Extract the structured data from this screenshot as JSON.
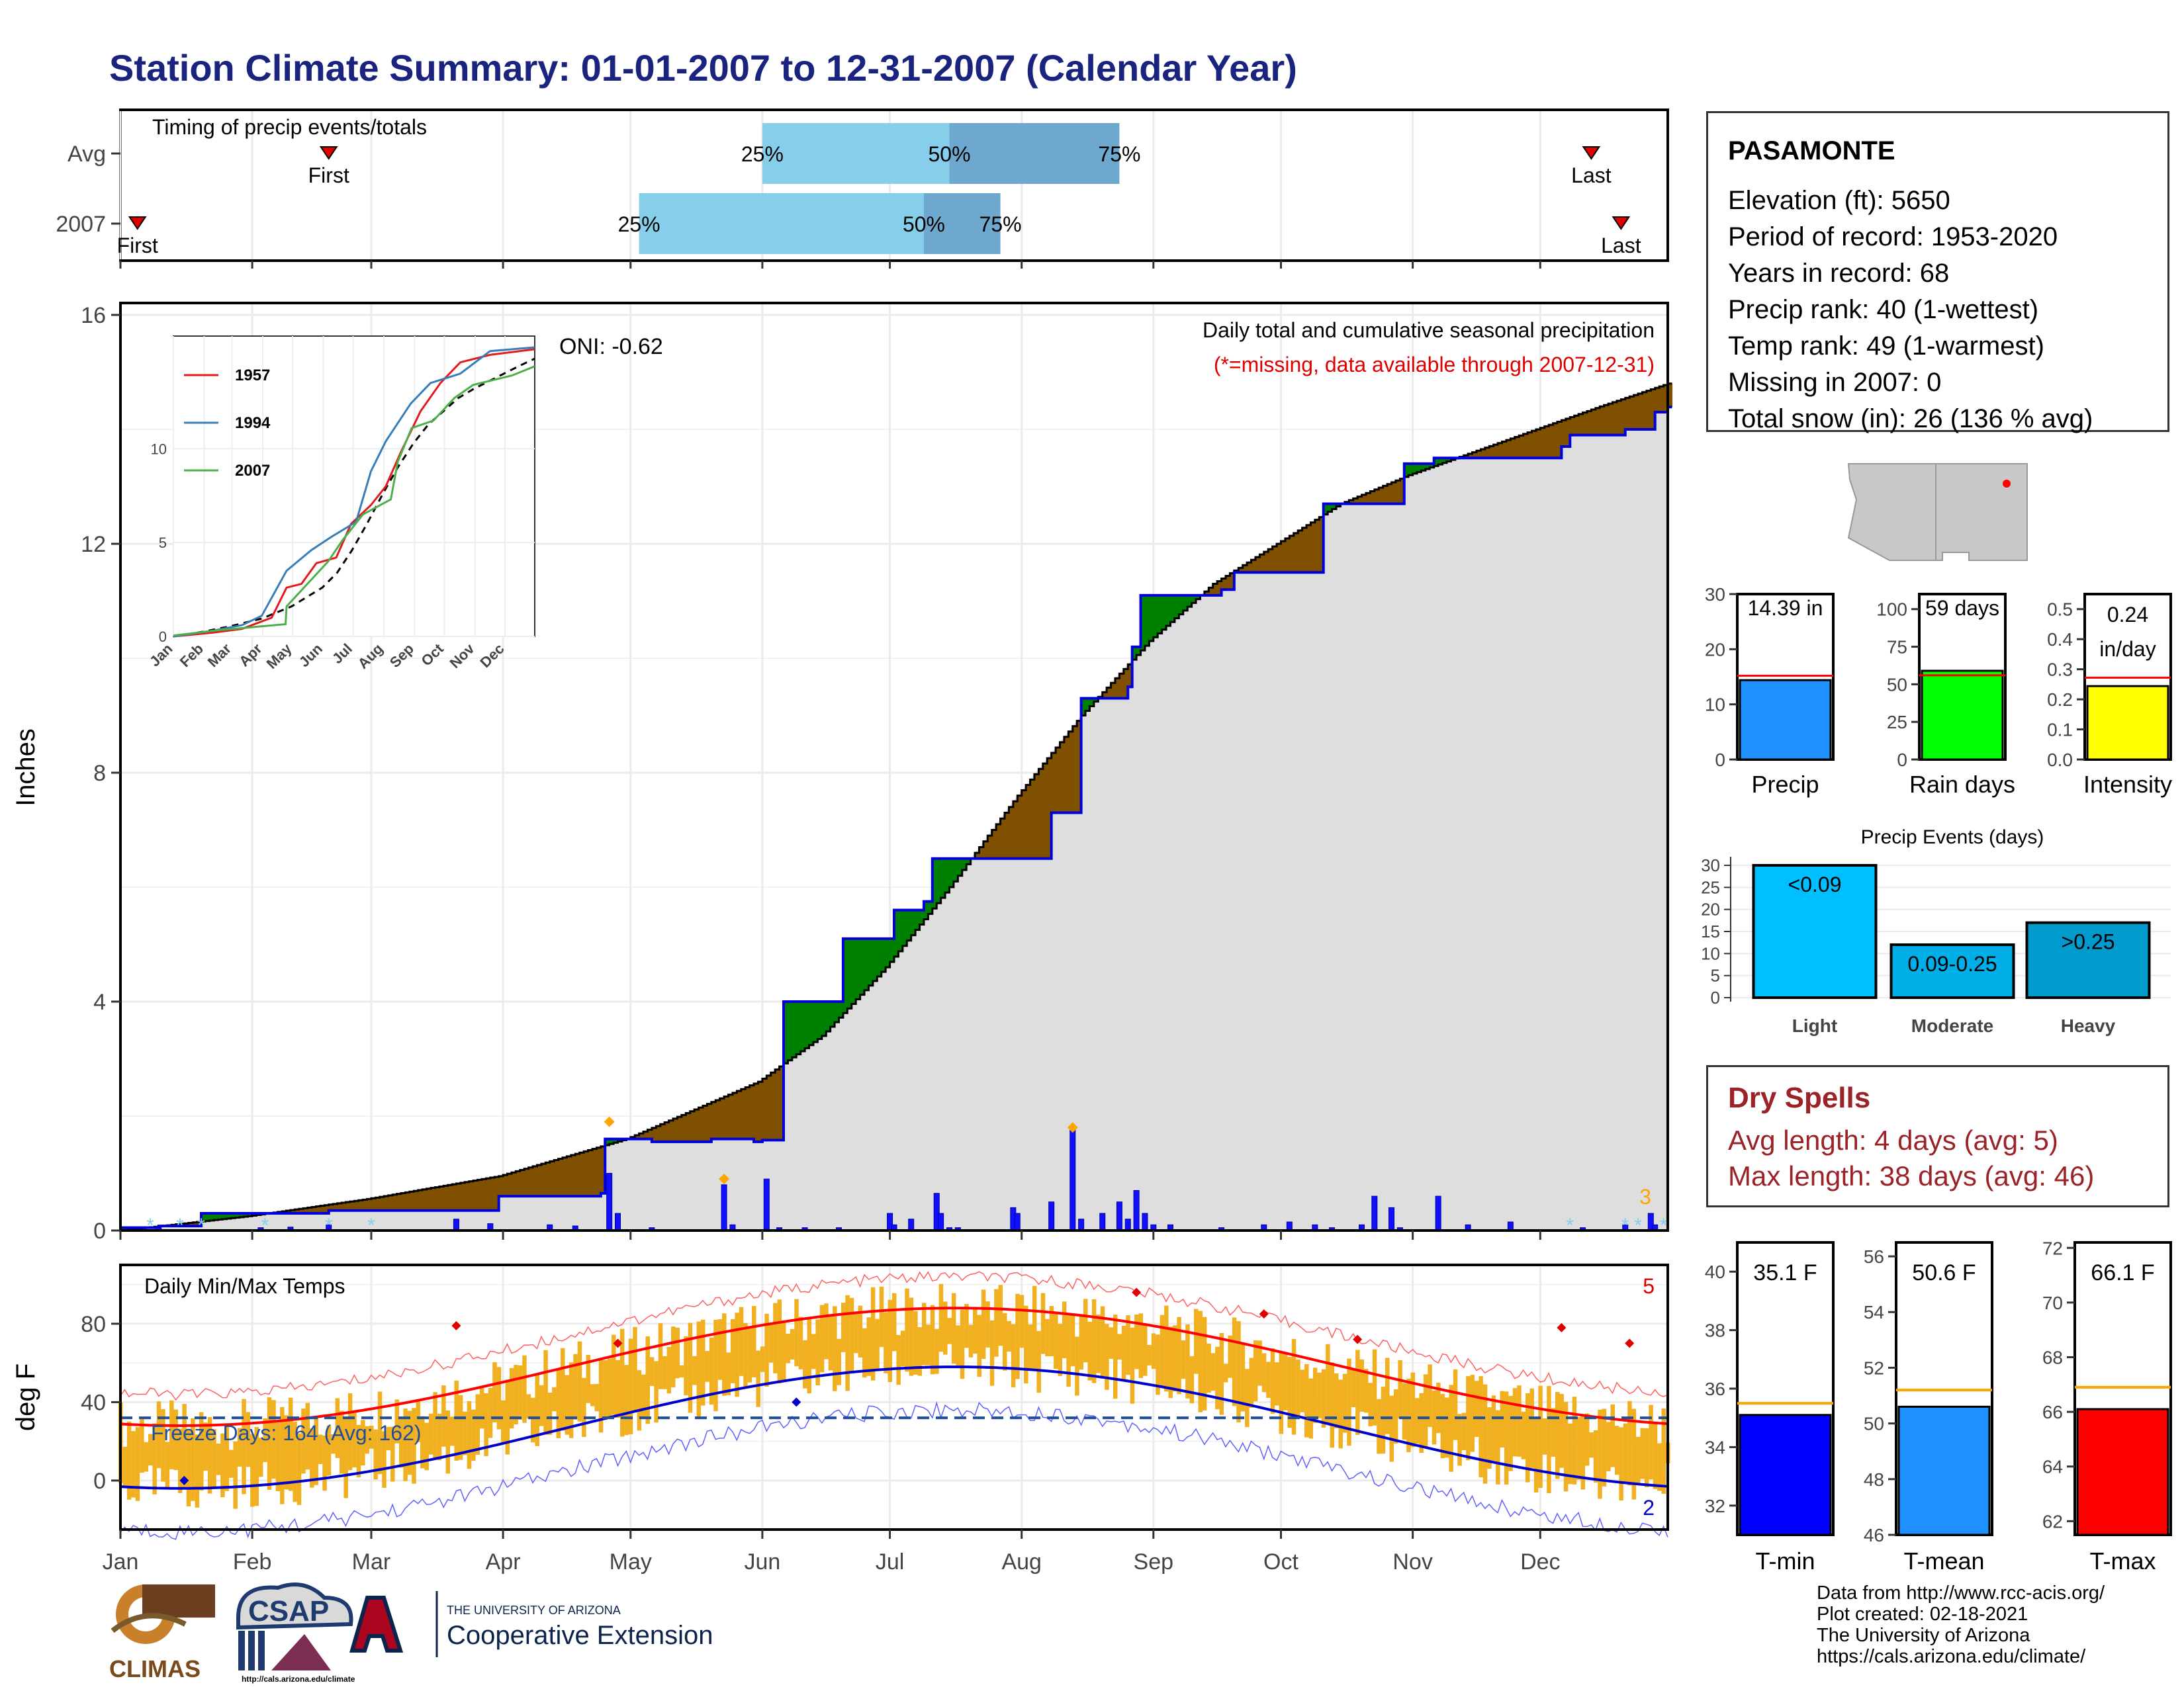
{
  "title": "Station Climate Summary: 01-01-2007 to 12-31-2007 (Calendar Year)",
  "months": [
    "Jan",
    "Feb",
    "Mar",
    "Apr",
    "May",
    "Jun",
    "Jul",
    "Aug",
    "Sep",
    "Oct",
    "Nov",
    "Dec"
  ],
  "station": {
    "name": "PASAMONTE",
    "lines": [
      "Elevation (ft): 5650",
      "Period of record: 1953-2020",
      "Years in record: 68",
      "Precip rank: 40 (1-wettest)",
      "Temp rank: 49 (1-warmest)",
      "Missing in 2007: 0",
      "Total snow (in): 26 (136 % avg)"
    ]
  },
  "timing_panel": {
    "title": "Timing of precip events/totals",
    "rows": [
      {
        "label": "Avg",
        "first_day": 50,
        "q25_day": 152,
        "q50_day": 196,
        "q75_day": 236,
        "last_day": 347
      },
      {
        "label": "2007",
        "first_day": 5,
        "q25_day": 123,
        "q50_day": 190,
        "q75_day": 208,
        "last_day": 354
      }
    ],
    "labels": {
      "first": "First",
      "last": "Last",
      "q25": "25%",
      "q50": "50%",
      "q75": "75%"
    }
  },
  "precip_panel": {
    "ylabel": "Inches",
    "ylim": [
      0,
      16
    ],
    "yticks": [
      0,
      4,
      8,
      12,
      16
    ],
    "annotation_title": "Daily total and cumulative seasonal precipitation",
    "annotation_missing": "(*=missing, data available through 2007-12-31)",
    "oni": "ONI: -0.62",
    "corner_count": "3",
    "cumulative_2007": [
      [
        1,
        0.05
      ],
      [
        10,
        0.08
      ],
      [
        20,
        0.3
      ],
      [
        50,
        0.35
      ],
      [
        90,
        0.6
      ],
      [
        114,
        0.65
      ],
      [
        115,
        1.6
      ],
      [
        125,
        1.6
      ],
      [
        126,
        1.55
      ],
      [
        140,
        1.6
      ],
      [
        141,
        1.6
      ],
      [
        150,
        1.55
      ],
      [
        152,
        1.58
      ],
      [
        157,
        4.0
      ],
      [
        170,
        4.0
      ],
      [
        171,
        5.1
      ],
      [
        182,
        5.1
      ],
      [
        183,
        5.6
      ],
      [
        190,
        5.75
      ],
      [
        192,
        6.5
      ],
      [
        218,
        6.5
      ],
      [
        220,
        7.3
      ],
      [
        227,
        9.3
      ],
      [
        238,
        9.5
      ],
      [
        239,
        10.2
      ],
      [
        241,
        11.1
      ],
      [
        260,
        11.2
      ],
      [
        263,
        11.5
      ],
      [
        282,
        11.5
      ],
      [
        284,
        12.7
      ],
      [
        300,
        12.7
      ],
      [
        303,
        13.4
      ],
      [
        310,
        13.5
      ],
      [
        340,
        13.7
      ],
      [
        342,
        13.9
      ],
      [
        355,
        14.0
      ],
      [
        362,
        14.3
      ],
      [
        365,
        14.39
      ]
    ],
    "cumulative_avg": [
      [
        1,
        0.0
      ],
      [
        31,
        0.25
      ],
      [
        59,
        0.55
      ],
      [
        90,
        0.95
      ],
      [
        120,
        1.6
      ],
      [
        151,
        2.6
      ],
      [
        166,
        3.4
      ],
      [
        181,
        4.6
      ],
      [
        196,
        6.0
      ],
      [
        212,
        7.6
      ],
      [
        227,
        9.0
      ],
      [
        243,
        10.3
      ],
      [
        258,
        11.3
      ],
      [
        273,
        12.0
      ],
      [
        288,
        12.7
      ],
      [
        304,
        13.2
      ],
      [
        319,
        13.6
      ],
      [
        334,
        14.0
      ],
      [
        349,
        14.4
      ],
      [
        365,
        14.8
      ]
    ],
    "daily": [
      [
        10,
        0.05
      ],
      [
        34,
        0.05
      ],
      [
        41,
        0.06
      ],
      [
        50,
        0.1
      ],
      [
        80,
        0.2
      ],
      [
        88,
        0.12
      ],
      [
        102,
        0.1
      ],
      [
        108,
        0.08
      ],
      [
        116,
        1.0
      ],
      [
        118,
        0.3
      ],
      [
        126,
        0.05
      ],
      [
        143,
        0.8
      ],
      [
        145,
        0.1
      ],
      [
        153,
        0.9
      ],
      [
        156,
        0.05
      ],
      [
        162,
        0.05
      ],
      [
        170,
        0.05
      ],
      [
        182,
        0.3
      ],
      [
        183,
        0.1
      ],
      [
        187,
        0.2
      ],
      [
        193,
        0.65
      ],
      [
        194,
        0.3
      ],
      [
        196,
        0.05
      ],
      [
        198,
        0.05
      ],
      [
        211,
        0.4
      ],
      [
        212,
        0.3
      ],
      [
        220,
        0.5
      ],
      [
        225,
        1.8
      ],
      [
        227,
        0.2
      ],
      [
        232,
        0.3
      ],
      [
        236,
        0.5
      ],
      [
        238,
        0.2
      ],
      [
        240,
        0.7
      ],
      [
        242,
        0.3
      ],
      [
        244,
        0.1
      ],
      [
        248,
        0.1
      ],
      [
        260,
        0.05
      ],
      [
        270,
        0.1
      ],
      [
        276,
        0.15
      ],
      [
        282,
        0.1
      ],
      [
        286,
        0.05
      ],
      [
        293,
        0.1
      ],
      [
        296,
        0.6
      ],
      [
        300,
        0.4
      ],
      [
        302,
        0.05
      ],
      [
        311,
        0.6
      ],
      [
        318,
        0.1
      ],
      [
        328,
        0.15
      ],
      [
        345,
        0.05
      ],
      [
        355,
        0.1
      ],
      [
        361,
        0.3
      ],
      [
        362,
        0.1
      ]
    ]
  },
  "temp_panel": {
    "ylabel": "deg F",
    "title": "Daily Min/Max Temps",
    "ylim": [
      -25,
      110
    ],
    "yticks": [
      0,
      40,
      80
    ],
    "freeze_line": 32,
    "freeze_label": "Freeze Days: 164 (Avg: 162)",
    "corner_hi": "5",
    "corner_lo": "2"
  },
  "inset": {
    "ylim": [
      0,
      16
    ],
    "yticks": [
      0,
      5,
      10
    ],
    "legend": [
      {
        "name": "1957",
        "color": "#e41a1c"
      },
      {
        "name": "1994",
        "color": "#377eb8"
      },
      {
        "name": "2007",
        "color": "#4daf4a"
      }
    ]
  },
  "side_bars": [
    {
      "label": "Precip",
      "value_text": "14.39 in",
      "value": 14.39,
      "avg": 15.2,
      "ylim": [
        0,
        30
      ],
      "yticks": [
        "0",
        "10",
        "20",
        "30"
      ],
      "color": "#1e90ff"
    },
    {
      "label": "Rain days",
      "value_text": "59 days",
      "value": 59,
      "avg": 56,
      "ylim": [
        0,
        110
      ],
      "yticks": [
        "0",
        "25",
        "50",
        "75",
        "100"
      ],
      "color": "#00ff00"
    },
    {
      "label": "Intensity",
      "value_text": "0.24",
      "value_text2": "in/day",
      "value": 0.244,
      "avg": 0.272,
      "ylim": [
        0,
        0.55
      ],
      "yticks": [
        "0.0",
        "0.1",
        "0.2",
        "0.3",
        "0.4",
        "0.5"
      ],
      "color": "#ffff00"
    }
  ],
  "precip_events": {
    "title": "Precip Events (days)",
    "categories": [
      "Light",
      "Moderate",
      "Heavy"
    ],
    "values": [
      30,
      12,
      17
    ],
    "bar_labels": [
      "<0.09",
      "0.09-0.25",
      ">0.25"
    ],
    "colors": [
      "#00bfff",
      "#00aee8",
      "#009acd"
    ],
    "yticks": [
      "0",
      "5",
      "10",
      "15",
      "20",
      "25",
      "30"
    ]
  },
  "dry_spells": {
    "title": "Dry Spells",
    "avg_length": "Avg length: 4 days (avg: 5)",
    "max_length": "Max length: 38 days (avg: 46)"
  },
  "temp_bars": [
    {
      "label": "T-min",
      "value_text": "35.1 F",
      "value": 35.1,
      "avg": 35.5,
      "ylim": [
        31,
        41
      ],
      "yticks": [
        "32",
        "34",
        "36",
        "38",
        "40"
      ],
      "color": "#0000ff"
    },
    {
      "label": "T-mean",
      "value_text": "50.6 F",
      "value": 50.6,
      "avg": 51.2,
      "ylim": [
        46,
        56.5
      ],
      "yticks": [
        "46",
        "48",
        "50",
        "52",
        "54",
        "56"
      ],
      "color": "#1e90ff"
    },
    {
      "label": "T-max",
      "value_text": "66.1 F",
      "value": 66.1,
      "avg": 66.9,
      "ylim": [
        61.5,
        72.2
      ],
      "yticks": [
        "62",
        "64",
        "66",
        "68",
        "70",
        "72"
      ],
      "color": "#ff0000"
    }
  ],
  "logos": {
    "climas": "CLIMAS",
    "csap": "CSAP",
    "csap_url": "http://cals.arizona.edu/climate",
    "ua_small": "THE UNIVERSITY OF ARIZONA",
    "ua_big": "Cooperative Extension"
  },
  "credits": [
    "Data from http://www.rcc-acis.org/",
    "Plot created: 02-18-2021",
    "The University of Arizona",
    "https://cals.arizona.edu/climate/"
  ]
}
